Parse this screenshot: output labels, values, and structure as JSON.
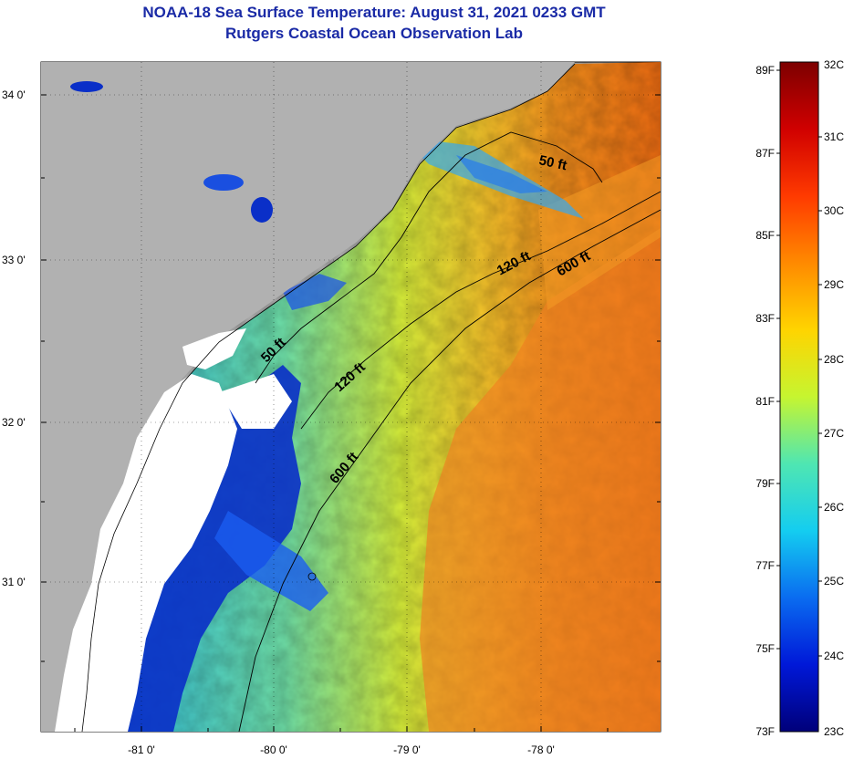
{
  "title": {
    "line1": "NOAA-18 Sea Surface Temperature:  August 31, 2021 0233 GMT",
    "line2": "Rutgers Coastal Ocean Observation Lab"
  },
  "map": {
    "lat_labels": [
      "34 0'",
      "33 0'",
      "32 0'",
      "31 0'"
    ],
    "lon_labels": [
      "-81 0'",
      "-80 0'",
      "-79 0'",
      "-78 0'"
    ],
    "contours": [
      {
        "label": "50 ft"
      },
      {
        "label": "50 ft"
      },
      {
        "label": "120 ft"
      },
      {
        "label": "120 ft"
      },
      {
        "label": "600 ft"
      },
      {
        "label": "600 ft"
      }
    ],
    "land_color": "#b1b1b1",
    "cloud_color": "#ffffff"
  },
  "colorbar": {
    "f_labels": [
      "89F",
      "87F",
      "85F",
      "83F",
      "81F",
      "79F",
      "77F",
      "75F",
      "73F"
    ],
    "c_labels": [
      "32C",
      "31C",
      "30C",
      "29C",
      "28C",
      "27C",
      "26C",
      "25C",
      "24C",
      "23C"
    ]
  }
}
